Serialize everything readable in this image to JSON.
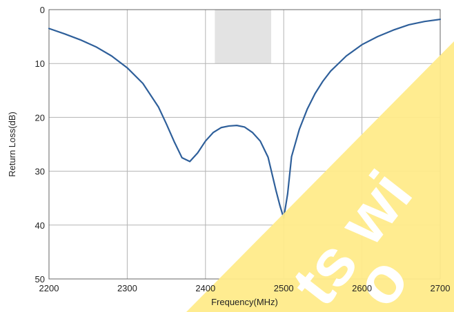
{
  "chart_data": {
    "type": "line",
    "title": "",
    "xlabel": "Frequency(MHz)",
    "ylabel": "Return Loss(dB)",
    "xlim": [
      2200,
      2700
    ],
    "ylim": [
      50,
      0
    ],
    "y_axis_inverted": true,
    "grid": true,
    "x_ticks": [
      2200,
      2300,
      2400,
      2500,
      2600,
      2700
    ],
    "y_ticks": [
      0,
      10,
      20,
      30,
      40,
      50
    ],
    "x_tick_labels": [
      "2200",
      "2300",
      "2400",
      "2500",
      "2600",
      "2700"
    ],
    "y_tick_labels": [
      "0",
      "10",
      "20",
      "30",
      "40",
      "50"
    ],
    "highlight_band": {
      "x_from": 2412,
      "x_to": 2484,
      "y_from": 0,
      "y_to": 10,
      "color": "#e3e3e3"
    },
    "series": [
      {
        "color": "#2e5f9a",
        "x": [
          2200,
          2220,
          2240,
          2260,
          2280,
          2300,
          2320,
          2340,
          2350,
          2360,
          2370,
          2380,
          2390,
          2400,
          2410,
          2420,
          2430,
          2440,
          2450,
          2460,
          2470,
          2480,
          2490,
          2495,
          2500,
          2505,
          2510,
          2520,
          2530,
          2540,
          2550,
          2560,
          2580,
          2600,
          2620,
          2640,
          2660,
          2680,
          2700
        ],
        "y": [
          3.5,
          4.5,
          5.6,
          6.9,
          8.6,
          10.8,
          13.7,
          18.1,
          21.2,
          24.5,
          27.5,
          28.2,
          26.6,
          24.4,
          22.8,
          21.9,
          21.6,
          21.5,
          21.8,
          22.8,
          24.4,
          27.4,
          33.5,
          36.3,
          38.7,
          34.2,
          27.3,
          22.2,
          18.5,
          15.6,
          13.3,
          11.4,
          8.6,
          6.5,
          5.0,
          3.8,
          2.8,
          2.2,
          1.8
        ]
      }
    ],
    "watermark_color": "#ffeb8a",
    "watermark_text_color": "#ffffff"
  }
}
